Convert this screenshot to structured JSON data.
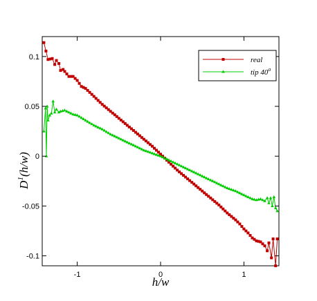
{
  "chart_data": {
    "type": "line",
    "title": "",
    "xlabel": "h/w",
    "ylabel": "D^1(h/w)",
    "ylabel_main": "D",
    "ylabel_sup": "1",
    "ylabel_rest": "(h/w)",
    "xlim": [
      -1.42,
      1.42
    ],
    "ylim": [
      -0.11,
      0.12
    ],
    "xticks": [
      -1,
      0,
      1
    ],
    "xtick_labels": [
      "-1",
      "0",
      "1"
    ],
    "yticks": [
      -0.1,
      -0.05,
      0,
      0.05,
      0.1
    ],
    "ytick_labels": [
      "-0.1",
      "-0.05",
      "0",
      "0.05",
      "0.1"
    ],
    "grid": false,
    "legend_position": "top-right",
    "series": [
      {
        "name": "real",
        "color": "#c00000",
        "marker": "square",
        "x": [
          -1.4,
          -1.35,
          -1.3,
          -1.27,
          -1.25,
          -1.22,
          -1.2,
          -1.17,
          -1.15,
          -1.1,
          -1.05,
          -1.0,
          -0.95,
          -0.9,
          -0.85,
          -0.8,
          -0.7,
          -0.6,
          -0.5,
          -0.4,
          -0.3,
          -0.2,
          -0.1,
          0.0,
          0.1,
          0.2,
          0.3,
          0.4,
          0.5,
          0.6,
          0.7,
          0.8,
          0.9,
          0.95,
          1.0,
          1.05,
          1.1,
          1.15,
          1.2,
          1.25,
          1.28,
          1.3,
          1.33,
          1.35,
          1.38,
          1.4
        ],
        "values": [
          0.114,
          0.097,
          0.098,
          0.092,
          0.096,
          0.093,
          0.086,
          0.087,
          0.085,
          0.08,
          0.08,
          0.076,
          0.07,
          0.068,
          0.064,
          0.06,
          0.052,
          0.045,
          0.038,
          0.031,
          0.024,
          0.017,
          0.01,
          0.002,
          -0.006,
          -0.014,
          -0.021,
          -0.028,
          -0.035,
          -0.042,
          -0.049,
          -0.057,
          -0.064,
          -0.068,
          -0.073,
          -0.077,
          -0.082,
          -0.085,
          -0.086,
          -0.09,
          -0.095,
          -0.087,
          -0.102,
          -0.083,
          -0.11,
          -0.083
        ]
      },
      {
        "name": "tip 40°",
        "color": "#00cc00",
        "marker": "triangle",
        "x": [
          -1.4,
          -1.38,
          -1.37,
          -1.36,
          -1.35,
          -1.33,
          -1.31,
          -1.29,
          -1.27,
          -1.25,
          -1.22,
          -1.2,
          -1.15,
          -1.1,
          -1.05,
          -1.0,
          -0.9,
          -0.8,
          -0.7,
          -0.6,
          -0.5,
          -0.4,
          -0.3,
          -0.2,
          -0.1,
          0.0,
          0.1,
          0.2,
          0.3,
          0.4,
          0.5,
          0.6,
          0.7,
          0.8,
          0.9,
          1.0,
          1.05,
          1.1,
          1.15,
          1.2,
          1.25,
          1.28,
          1.3,
          1.32,
          1.34,
          1.36,
          1.38,
          1.4
        ],
        "values": [
          0.025,
          0.048,
          0.0,
          0.05,
          0.036,
          0.041,
          0.043,
          0.055,
          0.044,
          0.047,
          0.044,
          0.045,
          0.046,
          0.044,
          0.042,
          0.041,
          0.036,
          0.031,
          0.027,
          0.022,
          0.018,
          0.014,
          0.01,
          0.006,
          0.003,
          0.0,
          -0.004,
          -0.008,
          -0.012,
          -0.016,
          -0.02,
          -0.024,
          -0.028,
          -0.032,
          -0.035,
          -0.039,
          -0.041,
          -0.043,
          -0.044,
          -0.043,
          -0.045,
          -0.042,
          -0.047,
          -0.042,
          -0.05,
          -0.041,
          -0.052,
          -0.055
        ]
      }
    ]
  },
  "legend": {
    "items": [
      {
        "label": "real"
      },
      {
        "label": "tip 40",
        "superscript": "o"
      }
    ]
  }
}
